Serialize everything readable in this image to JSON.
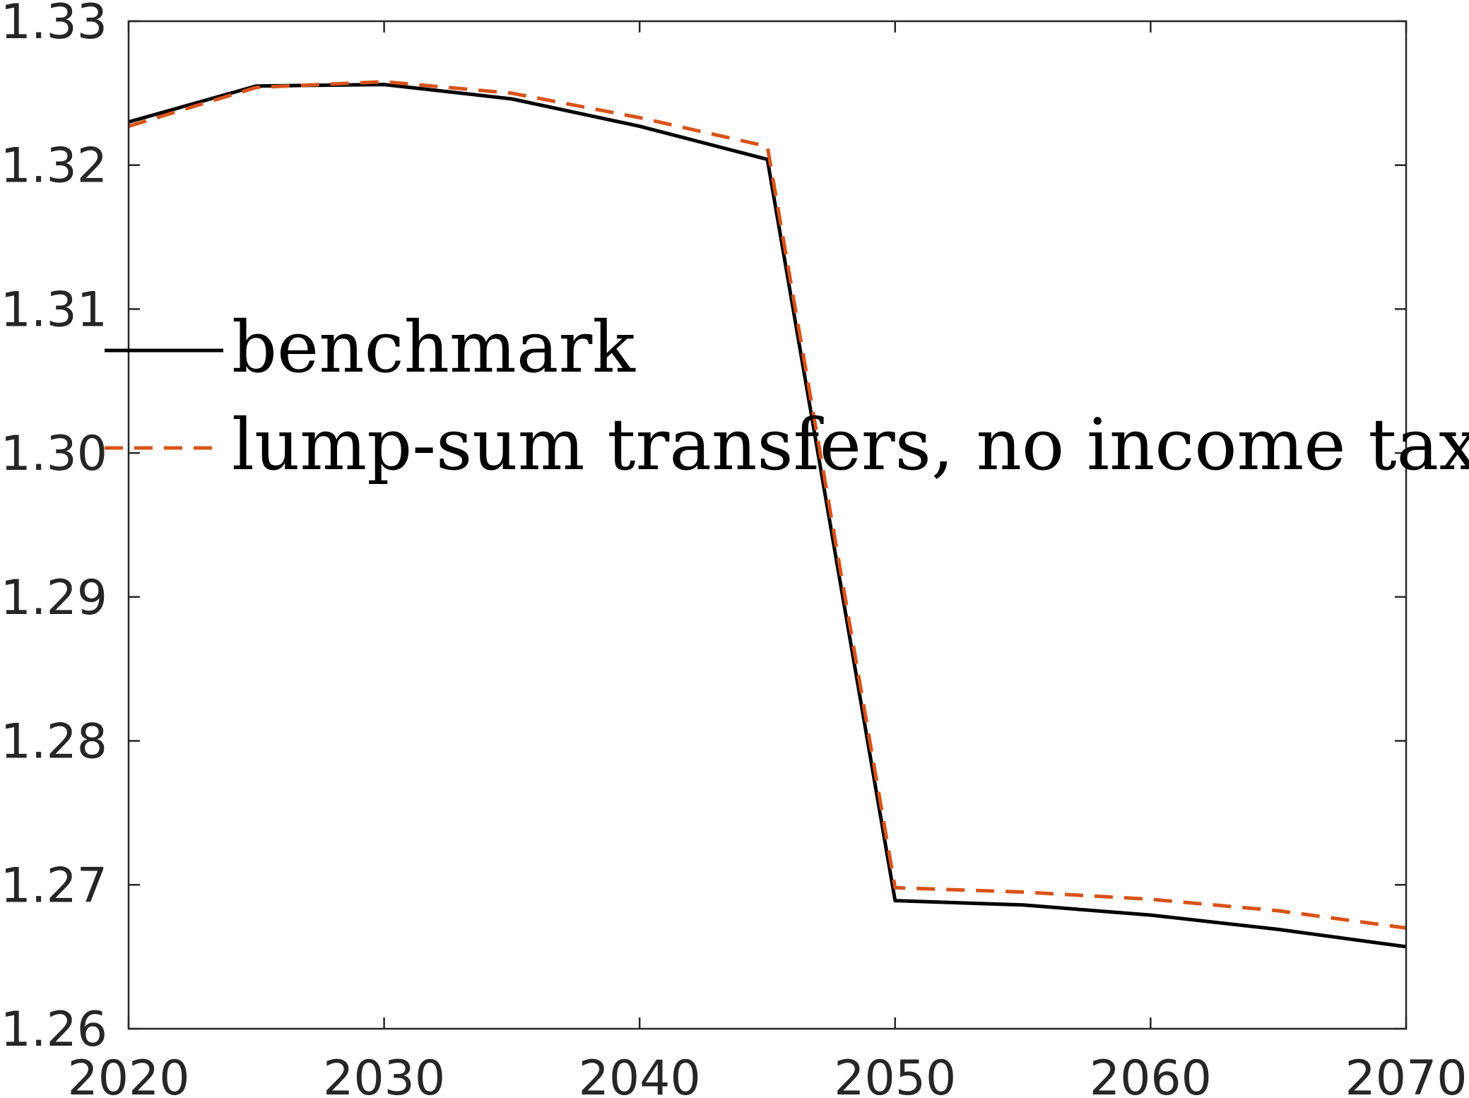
{
  "chart_data": {
    "type": "line",
    "title": "",
    "xlabel": "",
    "ylabel": "",
    "xlim": [
      2020,
      2070
    ],
    "ylim": [
      1.26,
      1.33
    ],
    "xticks": [
      2020,
      2030,
      2040,
      2050,
      2060,
      2070
    ],
    "xtick_labels": [
      "2020",
      "2030",
      "2040",
      "2050",
      "2060",
      "2070"
    ],
    "yticks": [
      1.26,
      1.27,
      1.28,
      1.29,
      1.3,
      1.31,
      1.32,
      1.33
    ],
    "ytick_labels": [
      "1.26",
      "1.27",
      "1.28",
      "1.29",
      "1.30",
      "1.31",
      "1.32",
      "1.33"
    ],
    "grid": false,
    "legend_position": "center-left",
    "series": [
      {
        "name": "benchmark",
        "color": "#000000",
        "style": "solid",
        "x": [
          2020,
          2025,
          2030,
          2035,
          2040,
          2045,
          2050,
          2055,
          2060,
          2065,
          2070
        ],
        "y": [
          1.323,
          1.3255,
          1.3256,
          1.3246,
          1.3227,
          1.3204,
          1.2689,
          1.2686,
          1.2679,
          1.2669,
          1.2657
        ]
      },
      {
        "name": "lump-sum transfers, no income tax",
        "color": "#D95319",
        "style": "dashed",
        "x": [
          2020,
          2025,
          2030,
          2035,
          2040,
          2045,
          2050,
          2055,
          2060,
          2065,
          2070
        ],
        "y": [
          1.3227,
          1.3254,
          1.3258,
          1.325,
          1.3233,
          1.3213,
          1.2698,
          1.2695,
          1.269,
          1.2682,
          1.267
        ]
      }
    ]
  }
}
